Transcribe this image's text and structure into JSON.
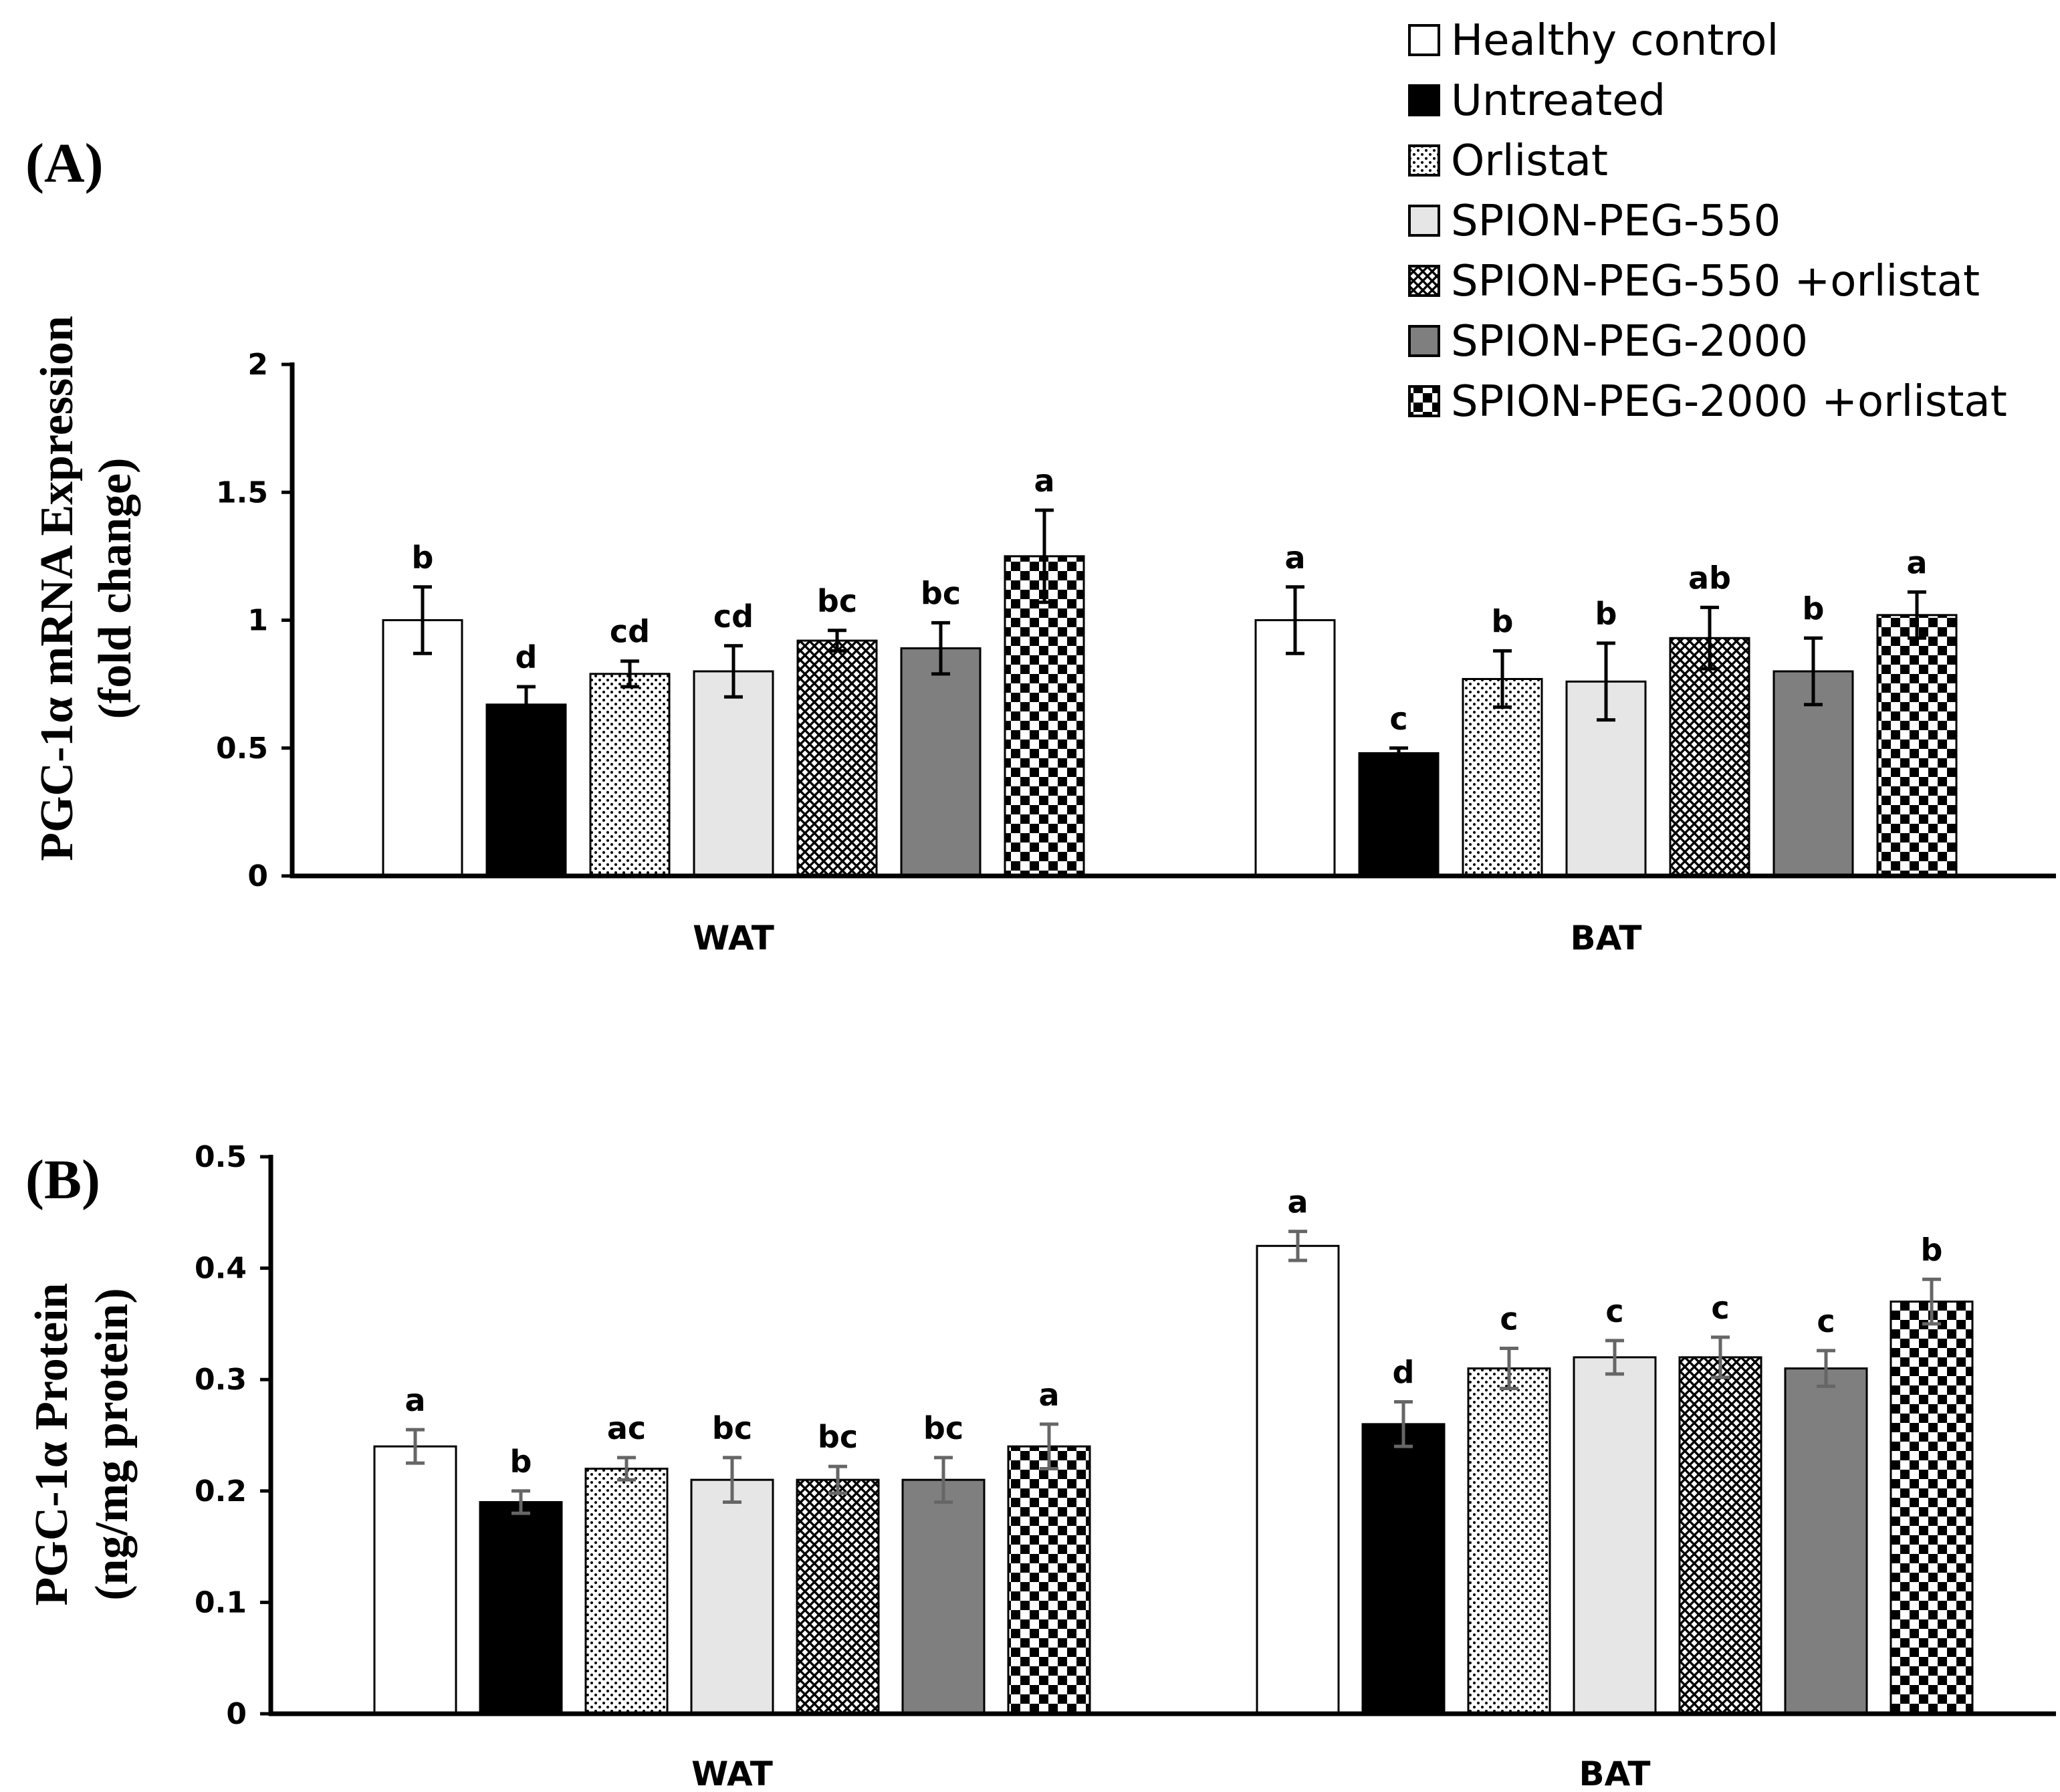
{
  "colors": {
    "bar_stroke": "#000000",
    "error_bar_a": "#000000",
    "error_bar_b": "#666666",
    "light_gray": "#e6e6e6",
    "mid_gray": "#7f7f7f",
    "black": "#000000",
    "white": "#ffffff"
  },
  "legend": [
    {
      "label": "Healthy control",
      "pattern": "white"
    },
    {
      "label": "Untreated",
      "pattern": "black"
    },
    {
      "label": "Orlistat",
      "pattern": "dots"
    },
    {
      "label": "SPION-PEG-550",
      "pattern": "lightgray"
    },
    {
      "label": "SPION-PEG-550 +orlistat",
      "pattern": "crosshatch"
    },
    {
      "label": "SPION-PEG-2000",
      "pattern": "gray"
    },
    {
      "label": "SPION-PEG-2000 +orlistat",
      "pattern": "checker"
    }
  ],
  "chart_data": [
    {
      "type": "bar",
      "panel_label": "(A)",
      "ylabel_line1": "PGC-1α mRNA Expression",
      "ylabel_line2": "(fold change)",
      "xlabel": "",
      "ylim": [
        0,
        2
      ],
      "yticks": [
        0,
        0.5,
        1,
        1.5,
        2
      ],
      "ytick_labels": [
        "0",
        "0.5",
        "1",
        "1.5",
        "2"
      ],
      "categories": [
        "WAT",
        "BAT"
      ],
      "series": [
        {
          "name": "Healthy control",
          "values": [
            1.0,
            1.0
          ],
          "errors": [
            0.13,
            0.13
          ],
          "letters": [
            "b",
            "a"
          ]
        },
        {
          "name": "Untreated",
          "values": [
            0.67,
            0.48
          ],
          "errors": [
            0.07,
            0.02
          ],
          "letters": [
            "d",
            "c"
          ]
        },
        {
          "name": "Orlistat",
          "values": [
            0.79,
            0.77
          ],
          "errors": [
            0.05,
            0.11
          ],
          "letters": [
            "cd",
            "b"
          ]
        },
        {
          "name": "SPION-PEG-550",
          "values": [
            0.8,
            0.76
          ],
          "errors": [
            0.1,
            0.15
          ],
          "letters": [
            "cd",
            "b"
          ]
        },
        {
          "name": "SPION-PEG-550 +orlistat",
          "values": [
            0.92,
            0.93
          ],
          "errors": [
            0.04,
            0.12
          ],
          "letters": [
            "bc",
            "ab"
          ]
        },
        {
          "name": "SPION-PEG-2000",
          "values": [
            0.89,
            0.8
          ],
          "errors": [
            0.1,
            0.13
          ],
          "letters": [
            "bc",
            "b"
          ]
        },
        {
          "name": "SPION-PEG-2000 +orlistat",
          "values": [
            1.25,
            1.02
          ],
          "errors": [
            0.18,
            0.09
          ],
          "letters": [
            "a",
            "a"
          ]
        }
      ]
    },
    {
      "type": "bar",
      "panel_label": "(B)",
      "ylabel_line1": "PGC-1α Protein",
      "ylabel_line2": "(ng/mg protein)",
      "xlabel": "",
      "ylim": [
        0,
        0.5
      ],
      "yticks": [
        0,
        0.1,
        0.2,
        0.3,
        0.4,
        0.5
      ],
      "ytick_labels": [
        "0",
        "0.1",
        "0.2",
        "0.3",
        "0.4",
        "0.5"
      ],
      "categories": [
        "WAT",
        "BAT"
      ],
      "series": [
        {
          "name": "Healthy control",
          "values": [
            0.24,
            0.42
          ],
          "errors": [
            0.015,
            0.013
          ],
          "letters": [
            "a",
            "a"
          ]
        },
        {
          "name": "Untreated",
          "values": [
            0.19,
            0.26
          ],
          "errors": [
            0.01,
            0.02
          ],
          "letters": [
            "b",
            "d"
          ]
        },
        {
          "name": "Orlistat",
          "values": [
            0.22,
            0.31
          ],
          "errors": [
            0.01,
            0.018
          ],
          "letters": [
            "ac",
            "c"
          ]
        },
        {
          "name": "SPION-PEG-550",
          "values": [
            0.21,
            0.32
          ],
          "errors": [
            0.02,
            0.015
          ],
          "letters": [
            "bc",
            "c"
          ]
        },
        {
          "name": "SPION-PEG-550 +orlistat",
          "values": [
            0.21,
            0.32
          ],
          "errors": [
            0.012,
            0.018
          ],
          "letters": [
            "bc",
            "c"
          ]
        },
        {
          "name": "SPION-PEG-2000",
          "values": [
            0.21,
            0.31
          ],
          "errors": [
            0.02,
            0.016
          ],
          "letters": [
            "bc",
            "c"
          ]
        },
        {
          "name": "SPION-PEG-2000 +orlistat",
          "values": [
            0.24,
            0.37
          ],
          "errors": [
            0.02,
            0.02
          ],
          "letters": [
            "a",
            "b"
          ]
        }
      ]
    }
  ]
}
